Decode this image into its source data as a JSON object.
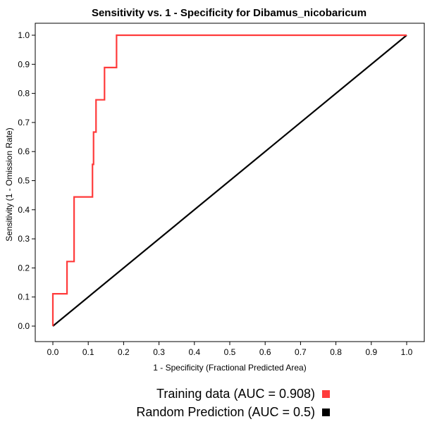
{
  "chart_data": {
    "type": "line",
    "title": "Sensitivity vs. 1 - Specificity for Dibamus_nicobaricum",
    "xlabel": "1 - Specificity  (Fractional Predicted Area)",
    "ylabel": "Sensitivity  (1 - Omission Rate)",
    "xlim": [
      0,
      1
    ],
    "ylim": [
      0,
      1
    ],
    "x_ticks": [
      "0.0",
      "0.1",
      "0.2",
      "0.3",
      "0.4",
      "0.5",
      "0.6",
      "0.7",
      "0.8",
      "0.9",
      "1.0"
    ],
    "y_ticks": [
      "0.0",
      "0.1",
      "0.2",
      "0.3",
      "0.4",
      "0.5",
      "0.6",
      "0.7",
      "0.8",
      "0.9",
      "1.0"
    ],
    "grid": false,
    "legend_position": "bottom",
    "series": [
      {
        "name": "Training data (AUC = 0.908)",
        "color": "#ff3b3b",
        "x": [
          0,
          0,
          0.04,
          0.04,
          0.06,
          0.06,
          0.112,
          0.112,
          0.115,
          0.115,
          0.122,
          0.122,
          0.146,
          0.146,
          0.18,
          0.18,
          1.0
        ],
        "y": [
          0,
          0.111,
          0.111,
          0.222,
          0.222,
          0.444,
          0.444,
          0.556,
          0.556,
          0.667,
          0.667,
          0.778,
          0.778,
          0.889,
          0.889,
          1.0,
          1.0
        ]
      },
      {
        "name": "Random Prediction (AUC = 0.5)",
        "color": "#000000",
        "x": [
          0,
          1
        ],
        "y": [
          0,
          1
        ]
      }
    ]
  }
}
